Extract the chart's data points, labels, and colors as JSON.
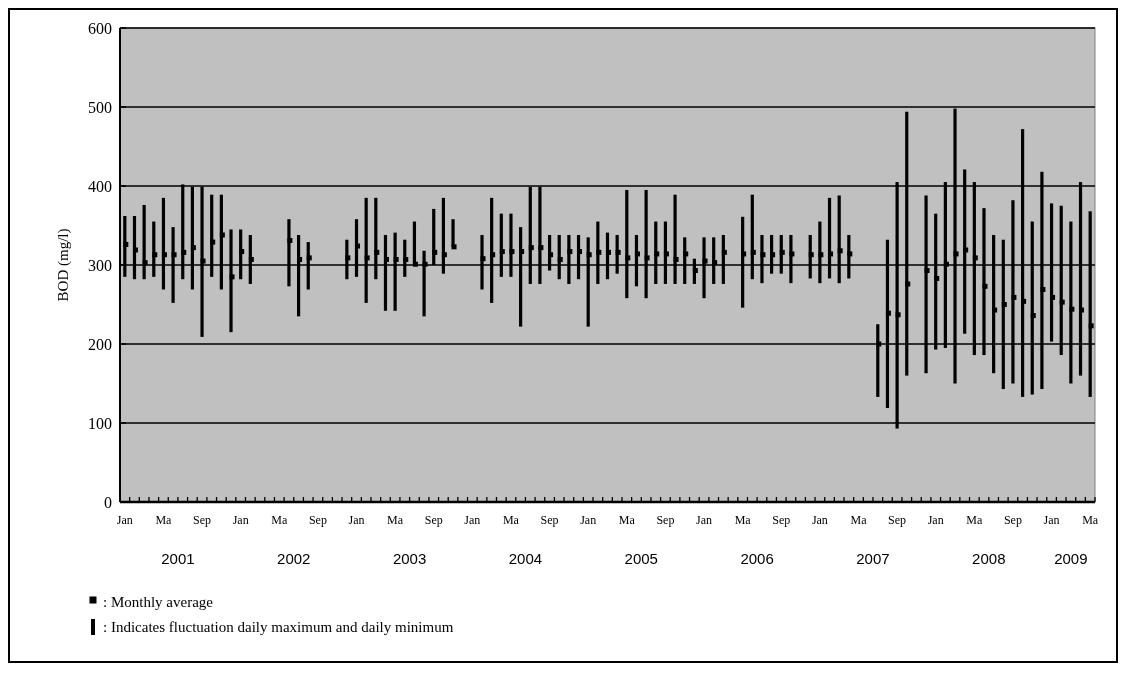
{
  "chart_data": {
    "type": "bar",
    "ylabel": "BOD (mg/l)",
    "ylim": [
      0,
      600
    ],
    "yticks": [
      0,
      100,
      200,
      300,
      400,
      500,
      600
    ],
    "grid": "y",
    "legend": "bottom left",
    "annotations": [
      "2001",
      "2002",
      "2003",
      "2004",
      "2005",
      "2006",
      "2007",
      "2008",
      "2009"
    ],
    "categories": [
      "Jan",
      null,
      null,
      null,
      "Ma",
      null,
      null,
      null,
      "Sep",
      null,
      null,
      null,
      "Jan",
      null,
      null,
      null,
      "Ma",
      null,
      null,
      null,
      "Sep",
      null,
      null,
      null,
      "Jan",
      null,
      null,
      null,
      "Ma",
      null,
      null,
      null,
      "Sep",
      null,
      null,
      null,
      "Jan",
      null,
      null,
      null,
      "Ma",
      null,
      null,
      null,
      "Sep",
      null,
      null,
      null,
      "Jan",
      null,
      null,
      null,
      "Ma",
      null,
      null,
      null,
      "Sep",
      null,
      null,
      null,
      "Jan",
      null,
      null,
      null,
      "Ma",
      null,
      null,
      null,
      "Sep",
      null,
      null,
      null,
      "Jan",
      null,
      null,
      null,
      "Ma",
      null,
      null,
      null,
      "Sep",
      null,
      null,
      null,
      "Jan",
      null,
      null,
      null,
      "Ma",
      null,
      null,
      null,
      "Sep",
      null,
      null,
      null,
      "Jan",
      null,
      null,
      null,
      "Ma"
    ],
    "series": [
      {
        "name": ": Indicates fluctuation daily maximum and daily minimum",
        "color": "#000000",
        "base": [
          285,
          282,
          282,
          285,
          269,
          252,
          282,
          269,
          209,
          285,
          269,
          215,
          282,
          276,
          null,
          null,
          null,
          273,
          235,
          269,
          null,
          null,
          null,
          282,
          285,
          252,
          282,
          242,
          242,
          285,
          300,
          235,
          300,
          289,
          323,
          null,
          null,
          269,
          252,
          285,
          285,
          222,
          276,
          276,
          293,
          282,
          276,
          282,
          222,
          276,
          282,
          289,
          258,
          273,
          258,
          276,
          276,
          276,
          276,
          276,
          258,
          276,
          276,
          null,
          246,
          282,
          277,
          289,
          289,
          277,
          null,
          283,
          277,
          283,
          277,
          283,
          null,
          null,
          133,
          119,
          93,
          160,
          null,
          163,
          193,
          195,
          150,
          213,
          186,
          186,
          163,
          143,
          150,
          133,
          136,
          143,
          203,
          186,
          150,
          160,
          133
        ],
        "values": [
          77,
          80,
          94,
          70,
          116,
          96,
          120,
          130,
          190,
          104,
          120,
          130,
          63,
          62,
          null,
          null,
          null,
          85,
          103,
          60,
          null,
          null,
          null,
          50,
          73,
          133,
          103,
          96,
          99,
          47,
          55,
          83,
          71,
          96,
          35,
          null,
          null,
          69,
          133,
          80,
          80,
          126,
          123,
          123,
          45,
          56,
          62,
          56,
          113,
          79,
          59,
          49,
          137,
          65,
          137,
          79,
          79,
          113,
          59,
          32,
          77,
          59,
          62,
          null,
          115,
          107,
          61,
          49,
          49,
          61,
          null,
          55,
          78,
          102,
          111,
          55,
          null,
          null,
          92,
          213,
          312,
          334,
          null,
          225,
          172,
          210,
          348,
          208,
          219,
          186,
          175,
          189,
          232,
          339,
          219,
          275,
          175,
          189,
          205,
          245,
          235
        ]
      },
      {
        "name": ": Monthly average",
        "type": "scatter",
        "marker": "square",
        "color": "#000000",
        "values": [
          326,
          319,
          303,
          313,
          313,
          313,
          316,
          322,
          305,
          329,
          338,
          285,
          317,
          307,
          null,
          null,
          null,
          331,
          307,
          309,
          null,
          null,
          null,
          309,
          324,
          309,
          316,
          307,
          307,
          307,
          301,
          301,
          316,
          313,
          323,
          null,
          null,
          308,
          313,
          317,
          317,
          317,
          322,
          322,
          313,
          307,
          317,
          317,
          313,
          316,
          316,
          316,
          309,
          314,
          309,
          314,
          314,
          307,
          314,
          293,
          305,
          303,
          316,
          null,
          314,
          316,
          313,
          313,
          316,
          314,
          null,
          313,
          313,
          314,
          318,
          314,
          null,
          null,
          200,
          239,
          237,
          276,
          null,
          293,
          283,
          301,
          314,
          319,
          309,
          273,
          243,
          250,
          259,
          254,
          236,
          269,
          259,
          253,
          244,
          243,
          223
        ]
      }
    ]
  }
}
